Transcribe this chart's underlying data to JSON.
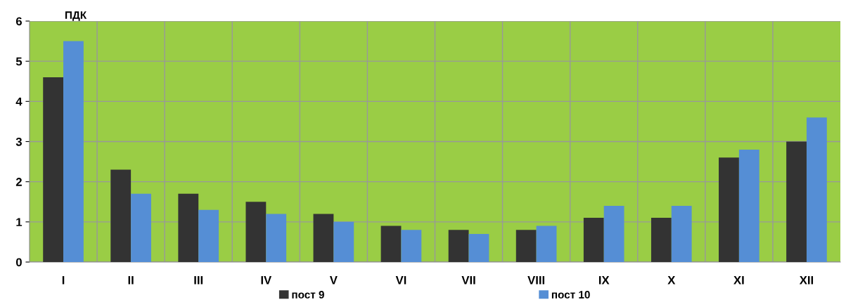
{
  "chart_data": {
    "type": "bar",
    "ylabel": "ПДК",
    "categories": [
      "I",
      "II",
      "III",
      "IV",
      "V",
      "VI",
      "VII",
      "VIII",
      "IX",
      "X",
      "XI",
      "XII"
    ],
    "series": [
      {
        "name": "пост 9",
        "color": "#333333",
        "values": [
          4.6,
          2.3,
          1.7,
          1.5,
          1.2,
          0.9,
          0.8,
          0.8,
          1.1,
          1.1,
          2.6,
          3.0
        ]
      },
      {
        "name": "пост 10",
        "color": "#558ed5",
        "values": [
          5.5,
          1.7,
          1.3,
          1.2,
          1.0,
          0.8,
          0.7,
          0.9,
          1.4,
          1.4,
          2.8,
          3.6
        ]
      }
    ],
    "ylim": [
      0,
      6
    ],
    "yticks": [
      0,
      1,
      2,
      3,
      4,
      5,
      6
    ],
    "grid": true,
    "legend": "bottom"
  }
}
